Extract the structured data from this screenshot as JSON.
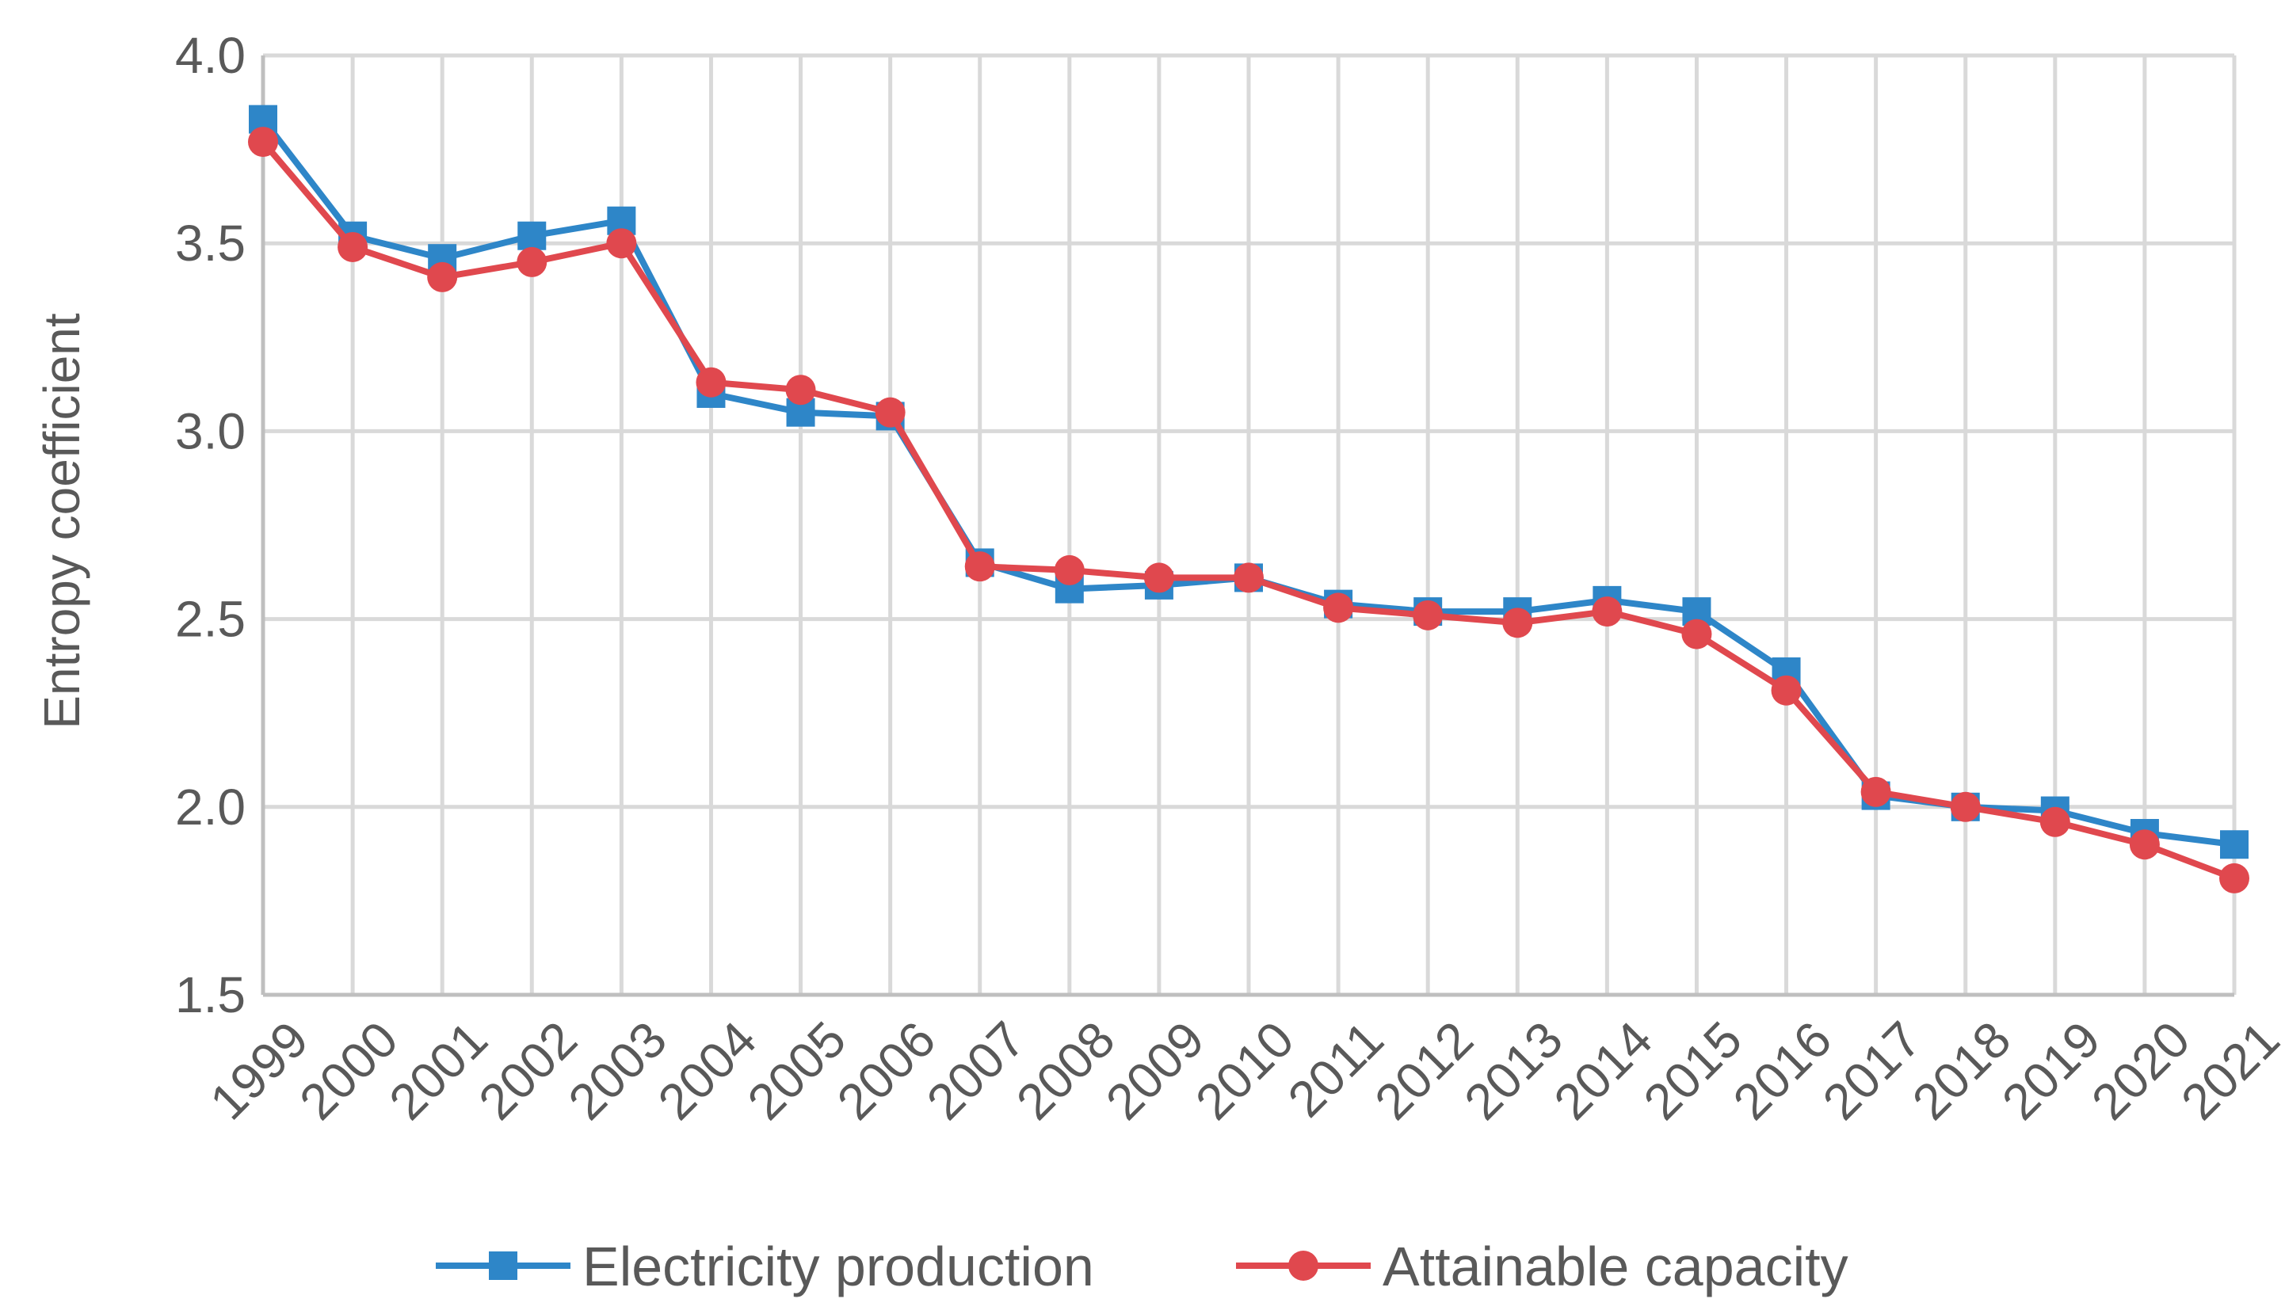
{
  "chart_data": {
    "type": "line",
    "title": "",
    "xlabel": "",
    "ylabel": "Entropy coefficient",
    "ylim": [
      1.5,
      4.0
    ],
    "yticks": [
      "1.5",
      "2.0",
      "2.5",
      "3.0",
      "3.5",
      "4.0"
    ],
    "grid": true,
    "legend_position": "bottom",
    "categories": [
      "1999",
      "2000",
      "2001",
      "2002",
      "2003",
      "2004",
      "2005",
      "2006",
      "2007",
      "2008",
      "2009",
      "2010",
      "2011",
      "2012",
      "2013",
      "2014",
      "2015",
      "2016",
      "2017",
      "2018",
      "2019",
      "2020",
      "2021"
    ],
    "series": [
      {
        "name": "Electricity production",
        "color": "#2e86c8",
        "marker": "square",
        "values": [
          3.83,
          3.52,
          3.46,
          3.52,
          3.56,
          3.1,
          3.05,
          3.04,
          2.65,
          2.58,
          2.59,
          2.61,
          2.54,
          2.52,
          2.52,
          2.55,
          2.52,
          2.36,
          2.03,
          2.0,
          1.99,
          1.93,
          1.9
        ]
      },
      {
        "name": "Attainable capacity",
        "color": "#e0484e",
        "marker": "circle",
        "values": [
          3.77,
          3.49,
          3.41,
          3.45,
          3.5,
          3.13,
          3.11,
          3.05,
          2.64,
          2.63,
          2.61,
          2.61,
          2.53,
          2.51,
          2.49,
          2.52,
          2.46,
          2.31,
          2.04,
          2.0,
          1.96,
          1.9,
          1.81
        ]
      }
    ]
  }
}
